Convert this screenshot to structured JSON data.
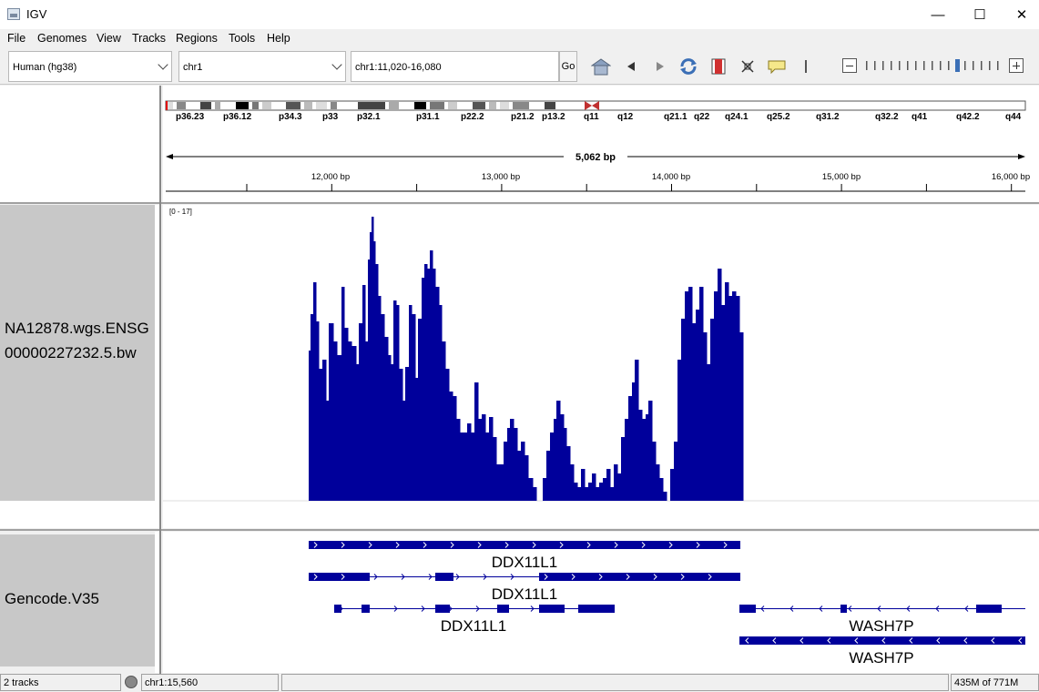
{
  "window": {
    "title": "IGV",
    "minimize": "—",
    "maximize": "☐",
    "close": "✕"
  },
  "menu": [
    "File",
    "Genomes",
    "View",
    "Tracks",
    "Regions",
    "Tools",
    "Help"
  ],
  "toolbar": {
    "genome": "Human (hg38)",
    "chromosome": "chr1",
    "locus": "chr1:11,020-16,080",
    "go_label": "Go",
    "zoom_level": 11,
    "zoom_ticks": 17
  },
  "ruler": {
    "span_label": "5,062 bp",
    "ticks": [
      "12,000 bp",
      "13,000 bp",
      "14,000 bp",
      "15,000 bp",
      "16,000 bp"
    ],
    "ideogram_bands": [
      "p36.23",
      "p36.12",
      "p34.3",
      "p33",
      "p32.1",
      "p31.1",
      "p22.2",
      "p21.2",
      "p13.2",
      "q11",
      "q12",
      "q21.1",
      "q22",
      "q24.1",
      "q25.2",
      "q31.2",
      "q32.2",
      "q41",
      "q42.2",
      "q44"
    ]
  },
  "tracks": {
    "coverage": {
      "name": "NA12878.wgs.ENSG00000227232.5.bw",
      "range": "[0 - 17]",
      "color": "#00009b"
    },
    "genes": {
      "name": "Gencode.V35",
      "color": "#00009b",
      "features": [
        {
          "label": "DDX11L1"
        },
        {
          "label": "DDX11L1"
        },
        {
          "label": "DDX11L1"
        },
        {
          "label": "WASH7P"
        },
        {
          "label": "WASH7P"
        }
      ]
    }
  },
  "status": {
    "tracks": "2 tracks",
    "position": "chr1:15,560",
    "memory": "435M of 771M"
  }
}
